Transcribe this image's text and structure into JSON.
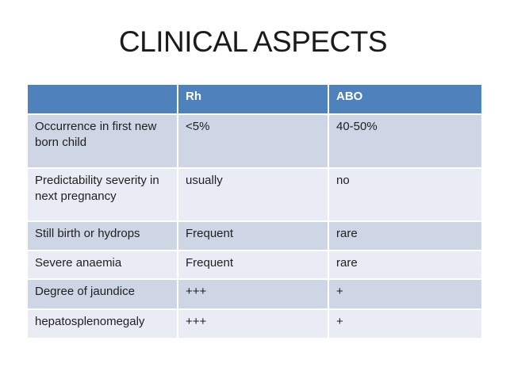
{
  "slide": {
    "title": "CLINICAL ASPECTS"
  },
  "colors": {
    "slide_bg": "#ffffff",
    "title_text": "#1a1a1a",
    "header_bg": "#4f81bd",
    "header_text": "#ffffff",
    "band_dark": "#ced5e4",
    "band_light": "#e9ecf4",
    "body_text": "#1f1f1f"
  },
  "table": {
    "headers": [
      "",
      "Rh",
      "ABO"
    ],
    "rows": [
      [
        "Occurrence in first new born child",
        "<5%",
        "40-50%"
      ],
      [
        "Predictability severity in next pregnancy",
        "usually",
        "no"
      ],
      [
        "Still birth or hydrops",
        "Frequent",
        "rare"
      ],
      [
        "Severe anaemia",
        "Frequent",
        "rare"
      ],
      [
        "Degree of jaundice",
        "+++",
        "+"
      ],
      [
        "hepatosplenomegaly",
        "+++",
        "+"
      ]
    ]
  }
}
